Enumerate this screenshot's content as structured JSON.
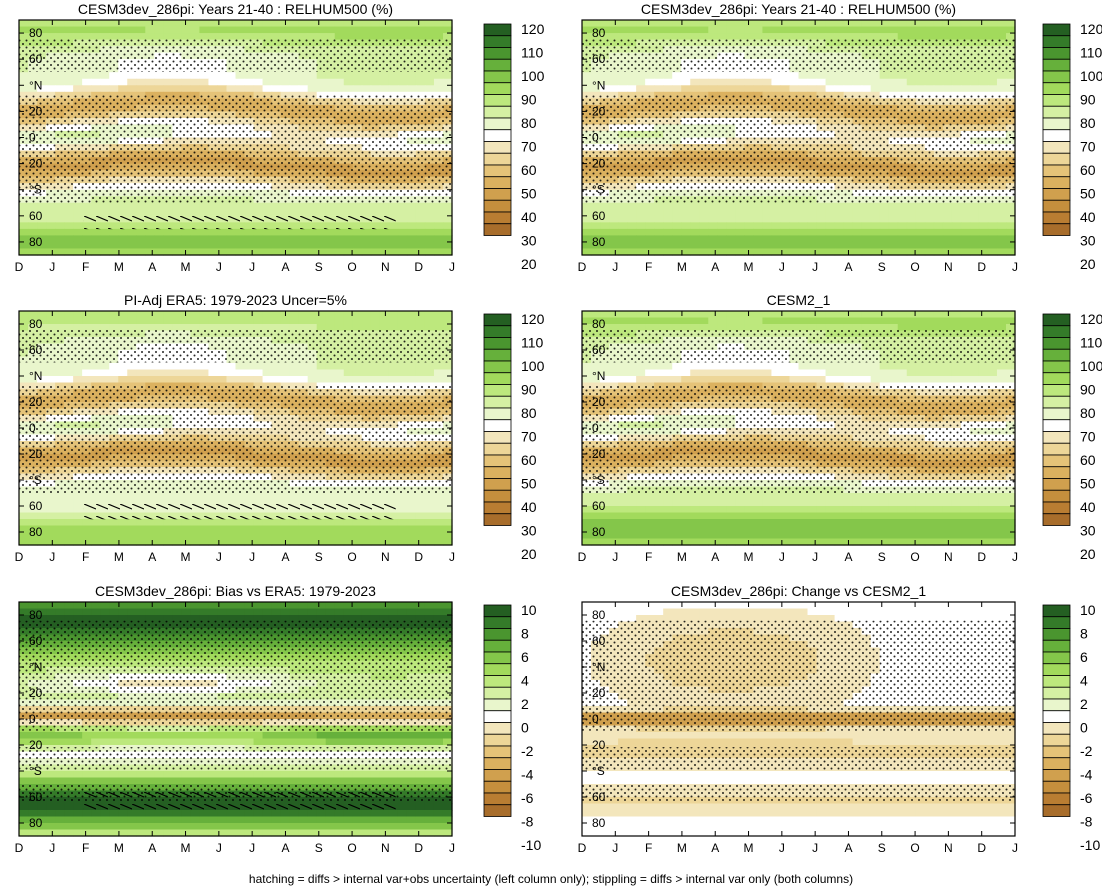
{
  "footnote": "hatching = diffs > internal var+obs uncertainty (left column only); stippling = diffs > internal var only (both columns)",
  "colors": {
    "abs_scale": [
      "#a86d2b",
      "#b97d32",
      "#c58f3d",
      "#d0a04e",
      "#dbb15f",
      "#e5c378",
      "#edd698",
      "#f3e6bc",
      "#ffffff",
      "#e9f6cc",
      "#d5f0a3",
      "#bde87d",
      "#a2da5c",
      "#84c64a",
      "#66b03b",
      "#4a952f",
      "#347b29",
      "#245f22"
    ],
    "diff_scale": [
      "#a86d2b",
      "#b97d32",
      "#c58f3d",
      "#d0a04e",
      "#dbb15f",
      "#e5c378",
      "#edd698",
      "#f3e6bc",
      "#ffffff",
      "#e9f6cc",
      "#d5f0a3",
      "#bde87d",
      "#a2da5c",
      "#84c64a",
      "#66b03b",
      "#4a952f",
      "#347b29",
      "#245f22"
    ]
  },
  "chart_data": [
    {
      "type": "heatmap",
      "title": "CESM3dev_286pi: Years 21-40 : RELHUM500 (%)",
      "x_ticks": [
        "D",
        "J",
        "F",
        "M",
        "A",
        "M",
        "J",
        "J",
        "A",
        "S",
        "O",
        "N",
        "D",
        "J"
      ],
      "y_ticks": [
        "80",
        "60",
        "°N",
        "20",
        "0",
        "20",
        "°S",
        "60",
        "80"
      ],
      "colorbar": [
        "120",
        "110",
        "100",
        "90",
        "80",
        "70",
        "60",
        "50",
        "40",
        "30",
        "20"
      ],
      "field": "abs",
      "hatched": true,
      "ylim": [
        -90,
        90
      ]
    },
    {
      "type": "heatmap",
      "title": "CESM3dev_286pi: Years 21-40 : RELHUM500 (%)",
      "x_ticks": [
        "D",
        "J",
        "F",
        "M",
        "A",
        "M",
        "J",
        "J",
        "A",
        "S",
        "O",
        "N",
        "D",
        "J"
      ],
      "y_ticks": [
        "80",
        "60",
        "°N",
        "20",
        "0",
        "20",
        "°S",
        "60",
        "80"
      ],
      "colorbar": [
        "120",
        "110",
        "100",
        "90",
        "80",
        "70",
        "60",
        "50",
        "40",
        "30",
        "20"
      ],
      "field": "abs",
      "hatched": false,
      "ylim": [
        -90,
        90
      ]
    },
    {
      "type": "heatmap",
      "title": "PI-Adj ERA5: 1979-2023 Uncer=5%",
      "x_ticks": [
        "D",
        "J",
        "F",
        "M",
        "A",
        "M",
        "J",
        "J",
        "A",
        "S",
        "O",
        "N",
        "D",
        "J"
      ],
      "y_ticks": [
        "80",
        "60",
        "°N",
        "20",
        "0",
        "20",
        "°S",
        "60",
        "80"
      ],
      "colorbar": [
        "120",
        "110",
        "100",
        "90",
        "80",
        "70",
        "60",
        "50",
        "40",
        "30",
        "20"
      ],
      "field": "obs",
      "hatched": true,
      "ylim": [
        -90,
        90
      ]
    },
    {
      "type": "heatmap",
      "title": "CESM2_1",
      "x_ticks": [
        "D",
        "J",
        "F",
        "M",
        "A",
        "M",
        "J",
        "J",
        "A",
        "S",
        "O",
        "N",
        "D",
        "J"
      ],
      "y_ticks": [
        "80",
        "60",
        "°N",
        "20",
        "0",
        "20",
        "°S",
        "60",
        "80"
      ],
      "colorbar": [
        "120",
        "110",
        "100",
        "90",
        "80",
        "70",
        "60",
        "50",
        "40",
        "30",
        "20"
      ],
      "field": "abs2",
      "hatched": false,
      "ylim": [
        -90,
        90
      ]
    },
    {
      "type": "heatmap",
      "title": "CESM3dev_286pi: Bias vs ERA5: 1979-2023",
      "x_ticks": [
        "D",
        "J",
        "F",
        "M",
        "A",
        "M",
        "J",
        "J",
        "A",
        "S",
        "O",
        "N",
        "D",
        "J"
      ],
      "y_ticks": [
        "80",
        "60",
        "°N",
        "20",
        "0",
        "20",
        "°S",
        "60",
        "80"
      ],
      "colorbar": [
        "10",
        "8",
        "6",
        "4",
        "2",
        "0",
        "-2",
        "-4",
        "-6",
        "-8",
        "-10"
      ],
      "field": "bias",
      "hatched": true,
      "ylim": [
        -90,
        90
      ]
    },
    {
      "type": "heatmap",
      "title": "CESM3dev_286pi: Change vs CESM2_1",
      "x_ticks": [
        "D",
        "J",
        "F",
        "M",
        "A",
        "M",
        "J",
        "J",
        "A",
        "S",
        "O",
        "N",
        "D",
        "J"
      ],
      "y_ticks": [
        "80",
        "60",
        "°N",
        "20",
        "0",
        "20",
        "°S",
        "60",
        "80"
      ],
      "colorbar": [
        "10",
        "8",
        "6",
        "4",
        "2",
        "0",
        "-2",
        "-4",
        "-6",
        "-8",
        "-10"
      ],
      "field": "change",
      "hatched": false,
      "ylim": [
        -90,
        90
      ]
    }
  ]
}
